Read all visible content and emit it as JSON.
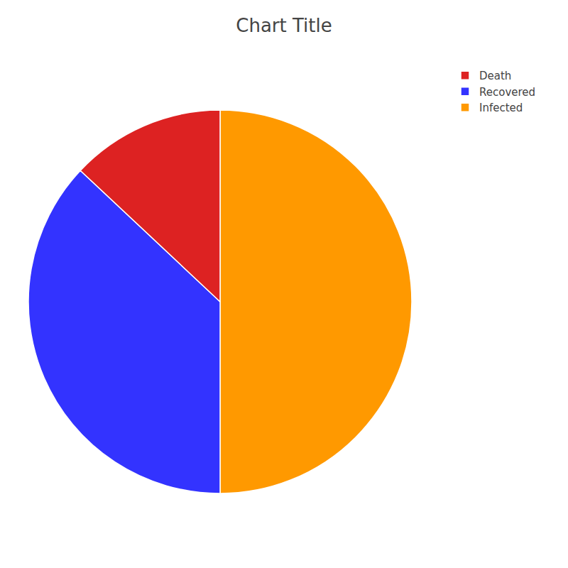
{
  "chart_data": {
    "type": "pie",
    "title": "Chart Title",
    "categories": [
      "Infected",
      "Recovered",
      "Death"
    ],
    "values": [
      50,
      37,
      13
    ],
    "colors": [
      "#ff9900",
      "#3333ff",
      "#dd2222"
    ],
    "legend": "upper right"
  }
}
